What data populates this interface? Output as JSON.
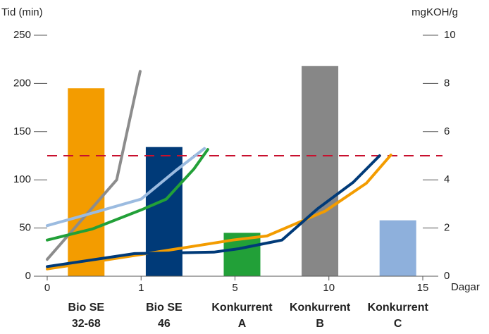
{
  "chart_data": {
    "type": "bar_line",
    "ylabel": "Tid (min)",
    "y2label": "mgKOH/g",
    "xlabel": "Dagar",
    "ylim": [
      0,
      250
    ],
    "yticks": [
      0,
      50,
      100,
      150,
      200,
      250
    ],
    "y2lim": [
      0,
      10
    ],
    "y2ticks": [
      0,
      2,
      4,
      6,
      8,
      10
    ],
    "xticks": [
      0,
      1,
      5,
      10,
      15
    ],
    "xlim": [
      0,
      15
    ],
    "categories": [
      [
        "Bio SE",
        "32-68"
      ],
      [
        "Bio SE",
        "46"
      ],
      [
        "Konkurrent",
        "A"
      ],
      [
        "Konkurrent",
        "B"
      ],
      [
        "Konkurrent",
        "C"
      ]
    ],
    "bars": {
      "values": [
        195,
        134,
        45,
        218,
        58
      ],
      "colors": [
        "#f39c00",
        "#003a78",
        "#22a038",
        "#878787",
        "#8eb0dc"
      ]
    },
    "reference_line": {
      "value": 5,
      "axis": "y2",
      "color": "#c8102e"
    },
    "series": [
      {
        "color": "#8c8c8c",
        "axis": "y2",
        "x": [
          0,
          0.74,
          0.99
        ],
        "values": [
          0.7,
          4.0,
          8.5
        ]
      },
      {
        "color": "#9bbbe0",
        "axis": "y2",
        "x": [
          0,
          0.55,
          1.0,
          2.5,
          3.7
        ],
        "values": [
          2.1,
          2.7,
          3.2,
          4.4,
          5.3
        ]
      },
      {
        "color": "#22a038",
        "axis": "y2",
        "x": [
          0,
          0.48,
          1.0,
          2.07,
          3.25,
          3.84
        ],
        "values": [
          1.5,
          1.96,
          2.75,
          3.2,
          4.45,
          5.26
        ]
      },
      {
        "color": "#f39c00",
        "axis": "y2",
        "x": [
          0,
          1,
          4.9,
          6.7,
          9.8,
          12.0,
          13.3
        ],
        "values": [
          0.3,
          0.9,
          1.5,
          1.67,
          2.7,
          3.86,
          5.03
        ]
      },
      {
        "color": "#003a78",
        "axis": "y2",
        "x": [
          0,
          0.93,
          4.1,
          5.2,
          7.5,
          9.4,
          11.3,
          12.7
        ],
        "values": [
          0.4,
          0.94,
          1.0,
          1.14,
          1.5,
          2.8,
          3.9,
          5.0
        ]
      }
    ]
  }
}
